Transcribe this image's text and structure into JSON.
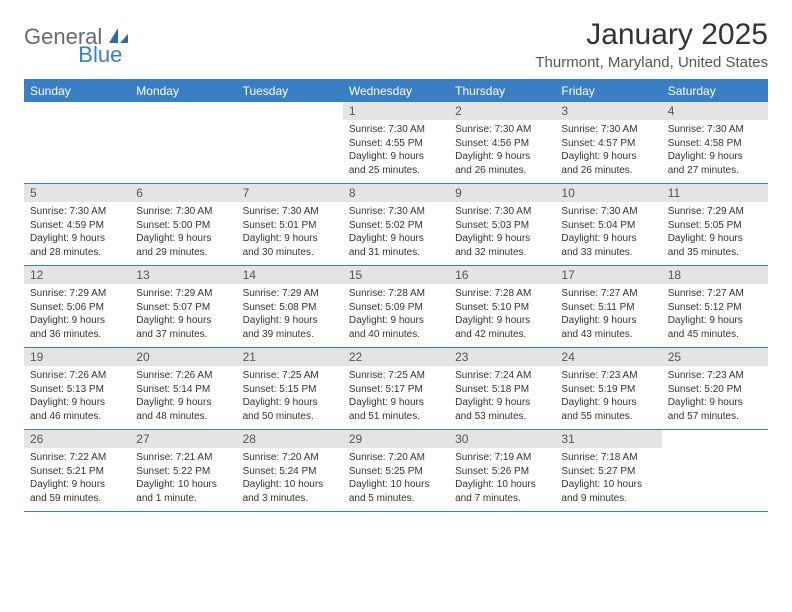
{
  "logo": {
    "text1": "General",
    "text2": "Blue"
  },
  "title": "January 2025",
  "location": "Thurmont, Maryland, United States",
  "colors": {
    "header_bg": "#3a7fc4",
    "header_text": "#ffffff",
    "daynum_bg": "#e4e4e4",
    "border": "#3a7fc4",
    "logo_gray": "#6b6b6b",
    "logo_blue": "#3a7fc4"
  },
  "weekdays": [
    "Sunday",
    "Monday",
    "Tuesday",
    "Wednesday",
    "Thursday",
    "Friday",
    "Saturday"
  ],
  "weeks": [
    [
      null,
      null,
      null,
      {
        "n": "1",
        "sr": "Sunrise: 7:30 AM",
        "ss": "Sunset: 4:55 PM",
        "d1": "Daylight: 9 hours",
        "d2": "and 25 minutes."
      },
      {
        "n": "2",
        "sr": "Sunrise: 7:30 AM",
        "ss": "Sunset: 4:56 PM",
        "d1": "Daylight: 9 hours",
        "d2": "and 26 minutes."
      },
      {
        "n": "3",
        "sr": "Sunrise: 7:30 AM",
        "ss": "Sunset: 4:57 PM",
        "d1": "Daylight: 9 hours",
        "d2": "and 26 minutes."
      },
      {
        "n": "4",
        "sr": "Sunrise: 7:30 AM",
        "ss": "Sunset: 4:58 PM",
        "d1": "Daylight: 9 hours",
        "d2": "and 27 minutes."
      }
    ],
    [
      {
        "n": "5",
        "sr": "Sunrise: 7:30 AM",
        "ss": "Sunset: 4:59 PM",
        "d1": "Daylight: 9 hours",
        "d2": "and 28 minutes."
      },
      {
        "n": "6",
        "sr": "Sunrise: 7:30 AM",
        "ss": "Sunset: 5:00 PM",
        "d1": "Daylight: 9 hours",
        "d2": "and 29 minutes."
      },
      {
        "n": "7",
        "sr": "Sunrise: 7:30 AM",
        "ss": "Sunset: 5:01 PM",
        "d1": "Daylight: 9 hours",
        "d2": "and 30 minutes."
      },
      {
        "n": "8",
        "sr": "Sunrise: 7:30 AM",
        "ss": "Sunset: 5:02 PM",
        "d1": "Daylight: 9 hours",
        "d2": "and 31 minutes."
      },
      {
        "n": "9",
        "sr": "Sunrise: 7:30 AM",
        "ss": "Sunset: 5:03 PM",
        "d1": "Daylight: 9 hours",
        "d2": "and 32 minutes."
      },
      {
        "n": "10",
        "sr": "Sunrise: 7:30 AM",
        "ss": "Sunset: 5:04 PM",
        "d1": "Daylight: 9 hours",
        "d2": "and 33 minutes."
      },
      {
        "n": "11",
        "sr": "Sunrise: 7:29 AM",
        "ss": "Sunset: 5:05 PM",
        "d1": "Daylight: 9 hours",
        "d2": "and 35 minutes."
      }
    ],
    [
      {
        "n": "12",
        "sr": "Sunrise: 7:29 AM",
        "ss": "Sunset: 5:06 PM",
        "d1": "Daylight: 9 hours",
        "d2": "and 36 minutes."
      },
      {
        "n": "13",
        "sr": "Sunrise: 7:29 AM",
        "ss": "Sunset: 5:07 PM",
        "d1": "Daylight: 9 hours",
        "d2": "and 37 minutes."
      },
      {
        "n": "14",
        "sr": "Sunrise: 7:29 AM",
        "ss": "Sunset: 5:08 PM",
        "d1": "Daylight: 9 hours",
        "d2": "and 39 minutes."
      },
      {
        "n": "15",
        "sr": "Sunrise: 7:28 AM",
        "ss": "Sunset: 5:09 PM",
        "d1": "Daylight: 9 hours",
        "d2": "and 40 minutes."
      },
      {
        "n": "16",
        "sr": "Sunrise: 7:28 AM",
        "ss": "Sunset: 5:10 PM",
        "d1": "Daylight: 9 hours",
        "d2": "and 42 minutes."
      },
      {
        "n": "17",
        "sr": "Sunrise: 7:27 AM",
        "ss": "Sunset: 5:11 PM",
        "d1": "Daylight: 9 hours",
        "d2": "and 43 minutes."
      },
      {
        "n": "18",
        "sr": "Sunrise: 7:27 AM",
        "ss": "Sunset: 5:12 PM",
        "d1": "Daylight: 9 hours",
        "d2": "and 45 minutes."
      }
    ],
    [
      {
        "n": "19",
        "sr": "Sunrise: 7:26 AM",
        "ss": "Sunset: 5:13 PM",
        "d1": "Daylight: 9 hours",
        "d2": "and 46 minutes."
      },
      {
        "n": "20",
        "sr": "Sunrise: 7:26 AM",
        "ss": "Sunset: 5:14 PM",
        "d1": "Daylight: 9 hours",
        "d2": "and 48 minutes."
      },
      {
        "n": "21",
        "sr": "Sunrise: 7:25 AM",
        "ss": "Sunset: 5:15 PM",
        "d1": "Daylight: 9 hours",
        "d2": "and 50 minutes."
      },
      {
        "n": "22",
        "sr": "Sunrise: 7:25 AM",
        "ss": "Sunset: 5:17 PM",
        "d1": "Daylight: 9 hours",
        "d2": "and 51 minutes."
      },
      {
        "n": "23",
        "sr": "Sunrise: 7:24 AM",
        "ss": "Sunset: 5:18 PM",
        "d1": "Daylight: 9 hours",
        "d2": "and 53 minutes."
      },
      {
        "n": "24",
        "sr": "Sunrise: 7:23 AM",
        "ss": "Sunset: 5:19 PM",
        "d1": "Daylight: 9 hours",
        "d2": "and 55 minutes."
      },
      {
        "n": "25",
        "sr": "Sunrise: 7:23 AM",
        "ss": "Sunset: 5:20 PM",
        "d1": "Daylight: 9 hours",
        "d2": "and 57 minutes."
      }
    ],
    [
      {
        "n": "26",
        "sr": "Sunrise: 7:22 AM",
        "ss": "Sunset: 5:21 PM",
        "d1": "Daylight: 9 hours",
        "d2": "and 59 minutes."
      },
      {
        "n": "27",
        "sr": "Sunrise: 7:21 AM",
        "ss": "Sunset: 5:22 PM",
        "d1": "Daylight: 10 hours",
        "d2": "and 1 minute."
      },
      {
        "n": "28",
        "sr": "Sunrise: 7:20 AM",
        "ss": "Sunset: 5:24 PM",
        "d1": "Daylight: 10 hours",
        "d2": "and 3 minutes."
      },
      {
        "n": "29",
        "sr": "Sunrise: 7:20 AM",
        "ss": "Sunset: 5:25 PM",
        "d1": "Daylight: 10 hours",
        "d2": "and 5 minutes."
      },
      {
        "n": "30",
        "sr": "Sunrise: 7:19 AM",
        "ss": "Sunset: 5:26 PM",
        "d1": "Daylight: 10 hours",
        "d2": "and 7 minutes."
      },
      {
        "n": "31",
        "sr": "Sunrise: 7:18 AM",
        "ss": "Sunset: 5:27 PM",
        "d1": "Daylight: 10 hours",
        "d2": "and 9 minutes."
      },
      null
    ]
  ]
}
